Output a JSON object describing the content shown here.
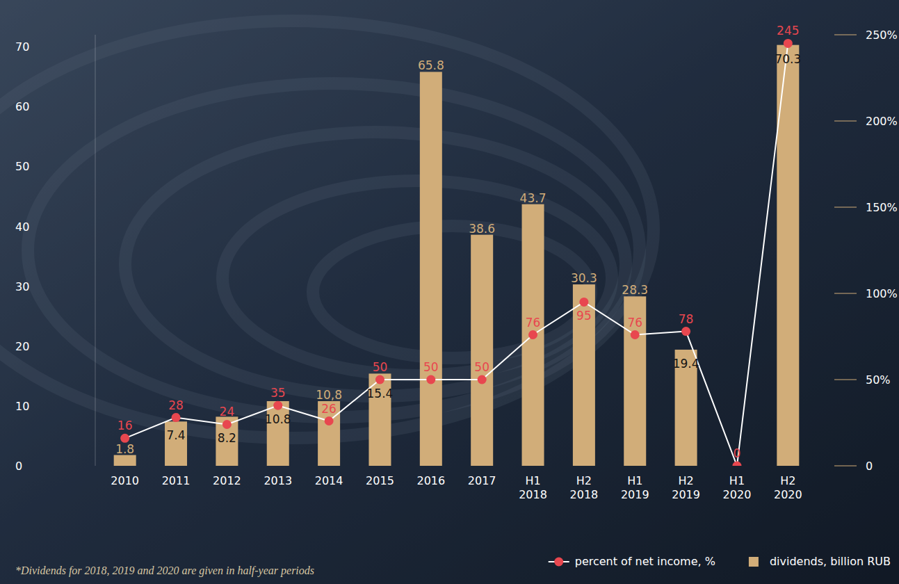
{
  "chart_data": {
    "type": "bar",
    "categories": [
      "2010",
      "2011",
      "2012",
      "2013",
      "2014",
      "2015",
      "2016",
      "2017",
      "H1 2018",
      "H2 2018",
      "H1 2019",
      "H2 2019",
      "H1 2020",
      "H2 2020"
    ],
    "series": [
      {
        "name": "dividends, billion RUB",
        "type": "bar",
        "color": "#d1ad79",
        "axis": "y",
        "values": [
          1.8,
          7.4,
          8.2,
          10.8,
          10.8,
          15.4,
          65.8,
          38.6,
          43.7,
          30.3,
          28.3,
          19.4,
          0,
          70.3
        ],
        "value_labels": [
          "1.8",
          "7.4",
          "8.2",
          "10.8",
          "10,8",
          "15.4",
          "65.8",
          "38.6",
          "43.7",
          "30.3",
          "28.3",
          "19.4",
          null,
          "70.3"
        ]
      },
      {
        "name": "percent of net income, %",
        "type": "line",
        "color": "#e8474f",
        "marker": "circle",
        "axis": "y2",
        "values": [
          16,
          28,
          24,
          35,
          26,
          50,
          50,
          50,
          76,
          95,
          76,
          78,
          0,
          245
        ]
      }
    ],
    "ylim": [
      0,
      72
    ],
    "yticks": [
      0,
      10,
      20,
      30,
      40,
      50,
      60,
      70
    ],
    "y2lim": [
      0,
      250
    ],
    "y2ticks": [
      0,
      {
        "value": 50,
        "label": "50%"
      },
      {
        "value": 100,
        "label": "100%"
      },
      {
        "value": 150,
        "label": "150%"
      },
      {
        "value": 200,
        "label": "200%"
      },
      {
        "value": 250,
        "label": "250%"
      }
    ],
    "data_labels": true,
    "grid": false,
    "legend": "bottom-right",
    "annotations": [
      "*Dividends for 2018, 2019 and 2020 are given in half-year periods"
    ]
  }
}
